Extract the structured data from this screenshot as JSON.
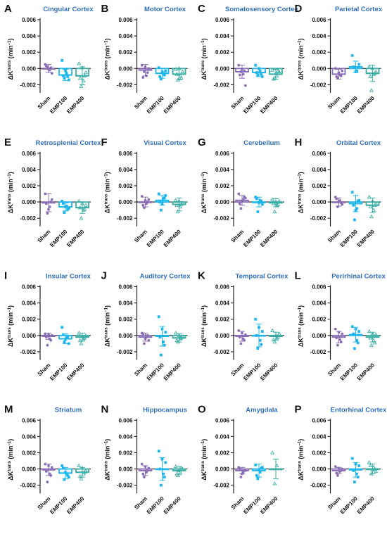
{
  "figure": {
    "ylabel": "ΔKtrans (min⁻¹)",
    "ylabel_main": "ΔK",
    "ylabel_sup": "trans",
    "ylabel_unit": " (min",
    "ylabel_unit_sup": "−1",
    "ylabel_close": ")",
    "yticks": [
      "0.006",
      "0.004",
      "0.002",
      "0.000",
      "-0.002"
    ],
    "ytick_values": [
      0.006,
      0.004,
      0.002,
      0.0,
      -0.002
    ],
    "ylim": [
      -0.003,
      0.006
    ],
    "groups": [
      "Sham",
      "EMP100",
      "EMP400"
    ],
    "colors": {
      "Sham": "#8a6fb5",
      "EMP100": "#1fb6ec",
      "EMP400": "#3aaea5",
      "title": "#2f6fba",
      "axis": "#222222"
    },
    "markers": {
      "Sham": "circle",
      "EMP100": "square",
      "EMP400": "triangle"
    }
  },
  "chart_data": [
    {
      "type": "bar",
      "letter": "A",
      "title": "Cingular Cortex",
      "categories": [
        "Sham",
        "EMP100",
        "EMP400"
      ],
      "values": [
        0.0,
        -0.0008,
        -0.0009
      ],
      "errors": [
        0.0005,
        0.0007,
        0.0011
      ],
      "points": [
        [
          0.0005,
          0.0002,
          -0.0002,
          -0.0006,
          0.0003,
          -0.0001,
          0.0001
        ],
        [
          0.001,
          -0.0012,
          -0.0006,
          -0.0014,
          -0.0009,
          -0.0003,
          -0.001
        ],
        [
          0.0006,
          -0.0022,
          -0.0015,
          -0.0005,
          -0.0012,
          0.0001,
          -0.0009
        ]
      ]
    },
    {
      "type": "bar",
      "letter": "B",
      "title": "Motor Cortex",
      "categories": [
        "Sham",
        "EMP100",
        "EMP400"
      ],
      "values": [
        -0.0002,
        -0.0006,
        -0.0007
      ],
      "errors": [
        0.0007,
        0.0006,
        0.0007
      ],
      "points": [
        [
          0.0004,
          -0.0004,
          -0.0009,
          0.0,
          -0.0011,
          0.0002,
          -0.0005
        ],
        [
          0.0001,
          -0.0013,
          -0.0006,
          -0.0003,
          -0.001,
          -0.0004,
          -0.0008
        ],
        [
          -0.0001,
          -0.0014,
          -0.0009,
          -0.0004,
          -0.0007,
          0.0,
          -0.0012
        ]
      ]
    },
    {
      "type": "bar",
      "letter": "C",
      "title": "Somatosensory Cortex",
      "categories": [
        "Sham",
        "EMP100",
        "EMP400"
      ],
      "values": [
        -0.0004,
        -0.0005,
        -0.0007
      ],
      "errors": [
        0.0008,
        0.0005,
        0.0006
      ],
      "points": [
        [
          0.0004,
          -0.0004,
          -0.0007,
          -0.0021,
          -0.0008,
          -0.0001,
          -0.0003
        ],
        [
          0.0004,
          -0.0008,
          -0.0003,
          -0.001,
          -0.0005,
          0.0,
          -0.0007
        ],
        [
          -0.0002,
          -0.0012,
          -0.0009,
          -0.0004,
          -0.0013,
          -0.0006,
          -0.0003
        ]
      ]
    },
    {
      "type": "bar",
      "letter": "D",
      "title": "Parietal Cortex",
      "categories": [
        "Sham",
        "EMP100",
        "EMP400"
      ],
      "values": [
        -0.0007,
        0.0002,
        -0.0006
      ],
      "errors": [
        0.0006,
        0.0007,
        0.001
      ],
      "points": [
        [
          0.0,
          -0.0012,
          -0.0008,
          -0.0003,
          -0.001,
          -0.0005,
          -0.0009
        ],
        [
          0.0016,
          0.0001,
          -0.0003,
          0.0005,
          0.0002,
          -0.0004,
          0.0001
        ],
        [
          0.0002,
          -0.0027,
          -0.0007,
          -0.0004,
          -0.001,
          0.0,
          -0.0006
        ]
      ]
    },
    {
      "type": "bar",
      "letter": "E",
      "title": "Retrosplenial Cortex",
      "categories": [
        "Sham",
        "EMP100",
        "EMP400"
      ],
      "values": [
        -0.0001,
        -0.0006,
        -0.0007
      ],
      "errors": [
        0.0011,
        0.0005,
        0.0007
      ],
      "points": [
        [
          0.001,
          -0.0014,
          -0.0006,
          0.0003,
          -0.0002,
          -0.0009,
          0.0
        ],
        [
          0.0001,
          -0.0013,
          -0.0005,
          -0.0008,
          -0.0002,
          -0.0006,
          -0.0009
        ],
        [
          0.0001,
          -0.002,
          -0.001,
          -0.0004,
          -0.0007,
          -0.0002,
          -0.0009
        ]
      ]
    },
    {
      "type": "bar",
      "letter": "F",
      "title": "Visual Cortex",
      "categories": [
        "Sham",
        "EMP100",
        "EMP400"
      ],
      "values": [
        0.0,
        0.0002,
        -0.0003
      ],
      "errors": [
        0.0006,
        0.0006,
        0.0008
      ],
      "points": [
        [
          0.0007,
          -0.0007,
          -0.0002,
          0.0003,
          -0.0004,
          0.0002,
          0.0
        ],
        [
          0.001,
          -0.001,
          0.0004,
          0.0008,
          0.0,
          -0.0002,
          0.0005
        ],
        [
          0.0002,
          -0.0012,
          -0.0006,
          -0.0001,
          -0.0004,
          0.0001,
          -0.0003
        ]
      ]
    },
    {
      "type": "bar",
      "letter": "G",
      "title": "Cerebellum",
      "categories": [
        "Sham",
        "EMP100",
        "EMP400"
      ],
      "values": [
        0.0002,
        0.0,
        -0.0001
      ],
      "errors": [
        0.0006,
        0.0006,
        0.0005
      ],
      "points": [
        [
          0.001,
          -0.0008,
          0.0003,
          0.0005,
          -0.0002,
          0.0001,
          0.0006
        ],
        [
          0.0006,
          -0.0012,
          0.0002,
          -0.0003,
          0.0004,
          -0.0001,
          0.0001
        ],
        [
          0.0003,
          -0.0012,
          -0.0004,
          0.0001,
          -0.0002,
          0.0,
          -0.0003
        ]
      ]
    },
    {
      "type": "bar",
      "letter": "H",
      "title": "Orbital Cortex",
      "categories": [
        "Sham",
        "EMP100",
        "EMP400"
      ],
      "values": [
        0.0,
        -0.0002,
        -0.0004
      ],
      "errors": [
        0.0005,
        0.001,
        0.0009
      ],
      "points": [
        [
          0.0006,
          -0.0006,
          0.0002,
          -0.0003,
          0.0004,
          0.0001,
          -0.0001
        ],
        [
          0.0012,
          -0.0022,
          -0.0008,
          0.0002,
          -0.0004,
          -0.001,
          0.0001
        ],
        [
          0.0006,
          -0.0018,
          -0.001,
          -0.0002,
          -0.0006,
          0.0001,
          -0.0004
        ]
      ]
    },
    {
      "type": "bar",
      "letter": "I",
      "title": "Insular Cortex",
      "categories": [
        "Sham",
        "EMP100",
        "EMP400"
      ],
      "values": [
        -0.0001,
        -0.0004,
        -0.0002
      ],
      "errors": [
        0.0004,
        0.0006,
        0.0005
      ],
      "points": [
        [
          0.0002,
          -0.0012,
          -0.0004,
          0.0,
          -0.0002,
          0.0001,
          -0.0006
        ],
        [
          0.001,
          -0.0008,
          -0.0003,
          -0.001,
          0.0001,
          -0.0005,
          -0.0002
        ],
        [
          0.0003,
          -0.001,
          -0.0004,
          0.0,
          -0.0006,
          -0.0001,
          -0.0003
        ]
      ]
    },
    {
      "type": "bar",
      "letter": "J",
      "title": "Auditory Cortex",
      "categories": [
        "Sham",
        "EMP100",
        "EMP400"
      ],
      "values": [
        -0.0002,
        -0.0001,
        -0.0003
      ],
      "errors": [
        0.0005,
        0.0012,
        0.0005
      ],
      "points": [
        [
          0.0003,
          -0.001,
          -0.0002,
          -0.0006,
          0.0001,
          -0.0004,
          0.0
        ],
        [
          0.0023,
          -0.0024,
          -0.0008,
          0.0004,
          -0.0002,
          0.0008,
          -0.0012
        ],
        [
          0.0003,
          -0.0008,
          -0.0004,
          -0.0001,
          -0.0006,
          0.0,
          -0.0003
        ]
      ]
    },
    {
      "type": "bar",
      "letter": "K",
      "title": "Temporal Cortex",
      "categories": [
        "Sham",
        "EMP100",
        "EMP400"
      ],
      "values": [
        -0.0001,
        0.0,
        -0.0001
      ],
      "errors": [
        0.0006,
        0.0014,
        0.0005
      ],
      "points": [
        [
          0.0006,
          -0.001,
          -0.0004,
          0.0001,
          -0.0002,
          0.0003,
          -0.0006
        ],
        [
          0.002,
          -0.0016,
          -0.0006,
          0.0005,
          0.0,
          0.001,
          -0.0011
        ],
        [
          0.0006,
          -0.0008,
          -0.0003,
          0.0002,
          -0.0005,
          0.0,
          -0.0002
        ]
      ]
    },
    {
      "type": "bar",
      "letter": "L",
      "title": "Perirhinal Cortex",
      "categories": [
        "Sham",
        "EMP100",
        "EMP400"
      ],
      "values": [
        -0.0002,
        0.0001,
        -0.0002
      ],
      "errors": [
        0.0007,
        0.0009,
        0.0006
      ],
      "points": [
        [
          0.0008,
          -0.0012,
          -0.0005,
          0.0002,
          -0.0003,
          0.0004,
          -0.0008
        ],
        [
          0.0011,
          -0.0016,
          -0.0006,
          0.0005,
          0.0002,
          0.0008,
          -0.0009
        ],
        [
          0.0005,
          -0.0012,
          -0.0006,
          0.0001,
          -0.0003,
          0.0002,
          -0.0009
        ]
      ]
    },
    {
      "type": "bar",
      "letter": "M",
      "title": "Striatum",
      "categories": [
        "Sham",
        "EMP100",
        "EMP400"
      ],
      "values": [
        -0.0001,
        -0.0005,
        -0.0004
      ],
      "errors": [
        0.0007,
        0.0007,
        0.0006
      ],
      "points": [
        [
          0.0006,
          -0.0016,
          -0.0006,
          0.0002,
          -0.0003,
          0.0004,
          -0.0008
        ],
        [
          0.0004,
          -0.0013,
          -0.0006,
          -0.001,
          0.0001,
          -0.0004,
          -0.0008
        ],
        [
          0.0004,
          -0.0012,
          -0.0006,
          -0.0002,
          -0.0009,
          0.0001,
          -0.0004
        ]
      ]
    },
    {
      "type": "bar",
      "letter": "N",
      "title": "Hippocampus",
      "categories": [
        "Sham",
        "EMP100",
        "EMP400"
      ],
      "values": [
        -0.0002,
        0.0,
        -0.0002
      ],
      "errors": [
        0.0006,
        0.0014,
        0.0005
      ],
      "points": [
        [
          0.0006,
          -0.001,
          -0.0004,
          0.0001,
          -0.0006,
          0.0003,
          -0.0002
        ],
        [
          0.0022,
          -0.002,
          -0.0006,
          0.0008,
          0.0,
          0.0012,
          -0.001
        ],
        [
          0.0003,
          -0.0008,
          -0.0004,
          0.0,
          -0.0006,
          -0.0002,
          0.0001
        ]
      ]
    },
    {
      "type": "bar",
      "letter": "O",
      "title": "Amygdala",
      "categories": [
        "Sham",
        "EMP100",
        "EMP400"
      ],
      "values": [
        -0.0002,
        -0.0002,
        0.0
      ],
      "errors": [
        0.0004,
        0.0008,
        0.0012
      ],
      "points": [
        [
          0.0002,
          -0.001,
          -0.0004,
          -0.0002,
          0.0,
          -0.0006,
          -0.0001
        ],
        [
          0.0005,
          -0.0012,
          -0.0004,
          0.0002,
          -0.0008,
          -0.0001,
          0.0001
        ],
        [
          0.002,
          -0.0018,
          0.0004
        ]
      ]
    },
    {
      "type": "bar",
      "letter": "P",
      "title": "Entorhinal Cortex",
      "categories": [
        "Sham",
        "EMP100",
        "EMP400"
      ],
      "values": [
        -0.0002,
        -0.0001,
        0.0
      ],
      "errors": [
        0.0004,
        0.0009,
        0.0006
      ],
      "points": [
        [
          0.0003,
          -0.0008,
          -0.0003,
          0.0,
          -0.0005,
          0.0001,
          -0.0002
        ],
        [
          0.0013,
          -0.0016,
          -0.0006,
          0.0004,
          -0.0002,
          0.0006,
          -0.001
        ],
        [
          0.0008,
          -0.0006,
          0.0002,
          -0.0003,
          0.0004,
          -0.0001,
          0.0
        ]
      ]
    }
  ]
}
